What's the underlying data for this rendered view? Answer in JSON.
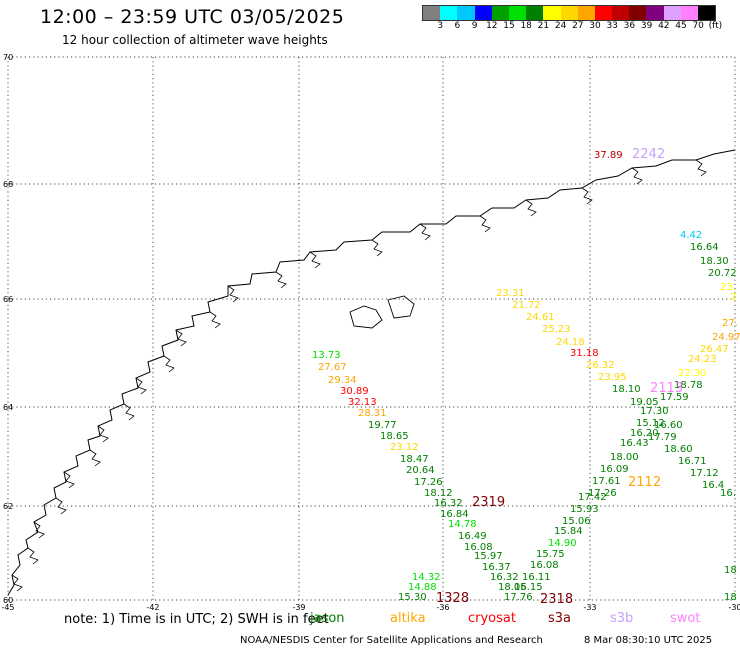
{
  "title": "12:00 – 23:59 UTC 03/05/2025",
  "subtitle": "12 hour collection of altimeter wave heights",
  "colorbar": {
    "unit": "(ft)",
    "colors": [
      "#808080",
      "#00ffff",
      "#00c8ff",
      "#0000ff",
      "#00a000",
      "#00e000",
      "#008000",
      "#ffff00",
      "#ffd700",
      "#ffa500",
      "#ff0000",
      "#c00000",
      "#800000",
      "#800080",
      "#e0a0ff",
      "#ff80ff",
      "#000000"
    ],
    "ticks": [
      "3",
      "6",
      "9",
      "12",
      "15",
      "18",
      "21",
      "24",
      "27",
      "30",
      "33",
      "36",
      "39",
      "42",
      "45",
      "70",
      "(ft)"
    ]
  },
  "map": {
    "lat_ticks": [
      "70",
      "68",
      "66",
      "64",
      "62"
    ],
    "lat_bottom_left": "60",
    "lon_ticks": [
      "-45",
      "-42",
      "-39",
      "-36",
      "-33",
      "-30"
    ],
    "lon_right_label": "-30"
  },
  "footer": {
    "note": "note: 1) Time is in UTC; 2) SWH is in feet",
    "legend": [
      {
        "label": "jason",
        "color": "#008000"
      },
      {
        "label": "altika",
        "color": "#ffa500"
      },
      {
        "label": "cryosat",
        "color": "#ff0000"
      },
      {
        "label": "s3a",
        "color": "#800000"
      },
      {
        "label": "s3b",
        "color": "#c8a0ff"
      },
      {
        "label": "swot",
        "color": "#ff80ff"
      }
    ],
    "credit": "NOAA/NESDIS Center for Satellite Applications and Research",
    "timestamp": "8 Mar 08:30:10 UTC 2025"
  },
  "tracks": [
    {
      "id": "2242",
      "color": "#c8a0ff",
      "points": [
        {
          "v": "37.89",
          "c": "#c00000"
        }
      ]
    },
    {
      "id": "2319",
      "color": "#800000",
      "points": [
        {
          "v": "13.73",
          "c": "#00e000"
        },
        {
          "v": "27.67",
          "c": "#ffa500"
        },
        {
          "v": "29.34",
          "c": "#ffa500"
        },
        {
          "v": "30.89",
          "c": "#ff0000"
        },
        {
          "v": "32.13",
          "c": "#ff0000"
        },
        {
          "v": "28.31",
          "c": "#ffa500"
        },
        {
          "v": "19.77",
          "c": "#008000"
        },
        {
          "v": "18.65",
          "c": "#008000"
        },
        {
          "v": "23.12",
          "c": "#ffd700"
        },
        {
          "v": "18.47",
          "c": "#008000"
        },
        {
          "v": "20.64",
          "c": "#008000"
        },
        {
          "v": "17.26",
          "c": "#008000"
        },
        {
          "v": "18.12",
          "c": "#008000"
        },
        {
          "v": "16.32",
          "c": "#008000"
        },
        {
          "v": "16.84",
          "c": "#008000"
        },
        {
          "v": "14.78",
          "c": "#00e000"
        },
        {
          "v": "16.49",
          "c": "#008000"
        },
        {
          "v": "16.08",
          "c": "#008000"
        },
        {
          "v": "15.97",
          "c": "#008000"
        },
        {
          "v": "16.37",
          "c": "#008000"
        },
        {
          "v": "16.32",
          "c": "#008000"
        },
        {
          "v": "18.05",
          "c": "#008000"
        },
        {
          "v": "17.76",
          "c": "#008000"
        }
      ]
    },
    {
      "id": "2318",
      "color": "#800000",
      "points": [
        {
          "v": "23.31",
          "c": "#ffd700"
        },
        {
          "v": "21.72",
          "c": "#ffd700"
        },
        {
          "v": "24.61",
          "c": "#ffd700"
        },
        {
          "v": "25.23",
          "c": "#ffd700"
        },
        {
          "v": "24.18",
          "c": "#ffd700"
        },
        {
          "v": "31.18",
          "c": "#ff0000"
        },
        {
          "v": "26.32",
          "c": "#ffd700"
        },
        {
          "v": "23.95",
          "c": "#ffd700"
        },
        {
          "v": "18.10",
          "c": "#008000"
        },
        {
          "v": "19.05",
          "c": "#008000"
        },
        {
          "v": "17.30",
          "c": "#008000"
        },
        {
          "v": "15.12",
          "c": "#008000"
        },
        {
          "v": "16.20",
          "c": "#008000"
        },
        {
          "v": "16.43",
          "c": "#008000"
        },
        {
          "v": "18.00",
          "c": "#008000"
        },
        {
          "v": "16.09",
          "c": "#008000"
        },
        {
          "v": "17.61",
          "c": "#008000"
        },
        {
          "v": "17.26",
          "c": "#008000"
        },
        {
          "v": "17.42",
          "c": "#008000"
        },
        {
          "v": "15.93",
          "c": "#008000"
        },
        {
          "v": "15.06",
          "c": "#008000"
        },
        {
          "v": "15.84",
          "c": "#008000"
        },
        {
          "v": "14.90",
          "c": "#00e000"
        },
        {
          "v": "15.75",
          "c": "#008000"
        },
        {
          "v": "16.08",
          "c": "#008000"
        },
        {
          "v": "16.11",
          "c": "#008000"
        },
        {
          "v": "16.15",
          "c": "#008000"
        }
      ]
    },
    {
      "id": "2112",
      "color": "#ffa500",
      "points": [
        {
          "v": "4.42",
          "c": "#00c8ff"
        },
        {
          "v": "16.64",
          "c": "#008000"
        },
        {
          "v": "18.30",
          "c": "#008000"
        },
        {
          "v": "20.72",
          "c": "#008000"
        },
        {
          "v": "23.",
          "c": "#ffff00"
        },
        {
          "v": "2",
          "c": "#ffff00"
        },
        {
          "v": "27.",
          "c": "#ffa500"
        },
        {
          "v": "24.97",
          "c": "#ffa500"
        },
        {
          "v": "26.47",
          "c": "#ffd700"
        },
        {
          "v": "24.23",
          "c": "#ffd700"
        },
        {
          "v": "22.30",
          "c": "#ffff00"
        },
        {
          "v": "18.78",
          "c": "#008000"
        },
        {
          "v": "17.59",
          "c": "#008000"
        },
        {
          "v": "16.60",
          "c": "#008000"
        },
        {
          "v": "17.79",
          "c": "#008000"
        },
        {
          "v": "18.60",
          "c": "#008000"
        },
        {
          "v": "16.71",
          "c": "#008000"
        },
        {
          "v": "17.12",
          "c": "#008000"
        },
        {
          "v": "16.4",
          "c": "#008000"
        },
        {
          "v": "16.",
          "c": "#008000"
        }
      ]
    },
    {
      "id": "2113",
      "color": "#ff80ff",
      "points": []
    },
    {
      "id": "1328",
      "color": "#800000",
      "points": [
        {
          "v": "14.32",
          "c": "#00e000"
        },
        {
          "v": "14.88",
          "c": "#00e000"
        },
        {
          "v": "15.30",
          "c": "#008000"
        }
      ]
    },
    {
      "id": "edge",
      "color": "#008000",
      "points": [
        {
          "v": "18",
          "c": "#008000"
        },
        {
          "v": "18",
          "c": "#008000"
        }
      ]
    }
  ]
}
